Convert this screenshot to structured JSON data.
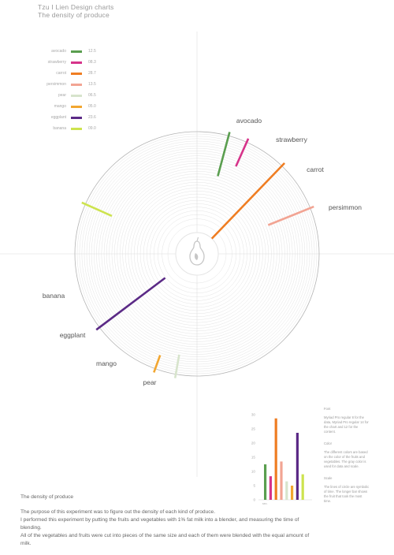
{
  "header": {
    "title": "Tzu I Lien Design charts",
    "subtitle": "The density of produce"
  },
  "legend": [
    {
      "name": "avocado",
      "value": "12.5",
      "color": "#5a9e4f"
    },
    {
      "name": "strawberry",
      "value": "08.3",
      "color": "#d6338a"
    },
    {
      "name": "carrot",
      "value": "28.7",
      "color": "#ef7d22"
    },
    {
      "name": "persimmon",
      "value": "13.5",
      "color": "#f2a493"
    },
    {
      "name": "pear",
      "value": "06.5",
      "color": "#d7e4cc"
    },
    {
      "name": "mango",
      "value": "05.0",
      "color": "#f2a630"
    },
    {
      "name": "eggplant",
      "value": "23.6",
      "color": "#5b2a86"
    },
    {
      "name": "banana",
      "value": "09.0",
      "color": "#cde34e"
    }
  ],
  "chart_data": [
    {
      "type": "radial-bar",
      "title": "The density of produce",
      "categories": [
        "avocado",
        "strawberry",
        "carrot",
        "persimmon",
        "pear",
        "mango",
        "eggplant",
        "banana"
      ],
      "values": [
        12.5,
        8.3,
        28.7,
        13.5,
        6.5,
        5.0,
        23.6,
        9.0
      ],
      "colors": [
        "#5a9e4f",
        "#d6338a",
        "#ef7d22",
        "#f2a493",
        "#d7e4cc",
        "#f2a630",
        "#5b2a86",
        "#cde34e"
      ],
      "center_icon": "pear-icon",
      "grid": true
    },
    {
      "type": "bar",
      "categories": [
        "avocado",
        "strawberry",
        "carrot",
        "persimmon",
        "pear",
        "mango",
        "eggplant",
        "banana"
      ],
      "values": [
        12.5,
        8.3,
        28.7,
        13.5,
        6.5,
        5.0,
        23.6,
        9.0
      ],
      "colors": [
        "#5a9e4f",
        "#d6338a",
        "#ef7d22",
        "#f2a493",
        "#d7e4cc",
        "#f2a630",
        "#5b2a86",
        "#cde34e"
      ],
      "yticks": [
        0,
        5,
        10,
        15,
        20,
        25,
        30
      ],
      "ylim": [
        0,
        30
      ],
      "xlabel": "sec."
    }
  ],
  "notes": {
    "font_heading": "Font",
    "font_text": "Myriad Pro regular 8 for the data, Myriad Pro regular 14 for the chart and 12 for the content.",
    "color_heading": "Color",
    "color_text": "The different colors are based on the color of the fruits and vegetables. The gray color is used for data and scale.",
    "scale_heading": "Scale",
    "scale_text": "The lines of circle are symbolic of time. The longer bar shows the fruit that took the most time."
  },
  "description": {
    "title": "The density of produce",
    "paragraphs": [
      "The purpose of this experiment was to figure out the density of each kind of produce.",
      "I performed this experiment by putting the fruits and vegetables with 1% fat milk into a blender, and measuring the time of blending.",
      "All of the vegetables and fruits were cut into pieces of the same size and each of them were blended with the equal amount of milk."
    ]
  }
}
